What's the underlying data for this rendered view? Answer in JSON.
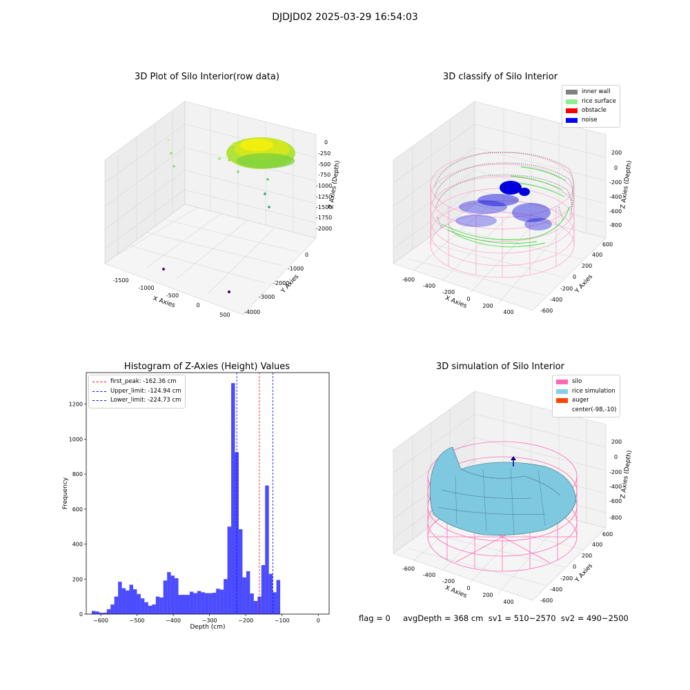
{
  "figure": {
    "suptitle": "DJDJD02 2025-03-29 16:54:03",
    "status_line": "flag = 0     avgDepth = 368 cm  sv1 = 510~2570  sv2 = 490~2500"
  },
  "panels": {
    "raw": {
      "title": "3D Plot of Silo Interior(row data)",
      "xlabel": "X Axies",
      "ylabel": "Y Axies",
      "zlabel": "Z Axies (Depth)",
      "xticks": [
        "-1500",
        "-1000",
        "-500",
        "0",
        "500"
      ],
      "yticks": [
        "-4000",
        "-3000",
        "-2000",
        "-1000",
        "0"
      ],
      "zticks": [
        "0",
        "-250",
        "-500",
        "-750",
        "-1000",
        "-1250",
        "-1500",
        "-1750",
        "-2000"
      ]
    },
    "classify": {
      "title": "3D classify of Silo Interior",
      "xlabel": "X Axies",
      "ylabel": "Y Axies",
      "zlabel": "Z Axies (Depth)",
      "xticks": [
        "-600",
        "-400",
        "-200",
        "0",
        "200",
        "400"
      ],
      "yticks": [
        "-600",
        "-400",
        "-200",
        "0",
        "200",
        "400",
        "600"
      ],
      "zticks": [
        "200",
        "0",
        "-200",
        "-400",
        "-600",
        "-800"
      ],
      "legend": [
        {
          "label": "inner wall",
          "color": "#808080"
        },
        {
          "label": "rice surface",
          "color": "#90ee90"
        },
        {
          "label": "obstacle",
          "color": "#ff0000"
        },
        {
          "label": "noise",
          "color": "#0000ff"
        }
      ]
    },
    "simulation": {
      "title": "3D simulation of Silo Interior",
      "xlabel": "X Axies",
      "ylabel": "Y Axies",
      "zlabel": "Z Axies (Depth)",
      "xticks": [
        "-600",
        "-400",
        "-200",
        "0",
        "200",
        "400"
      ],
      "yticks": [
        "-600",
        "-400",
        "-200",
        "0",
        "200",
        "400",
        "600"
      ],
      "zticks": [
        "200",
        "0",
        "-200",
        "-400",
        "-600",
        "-800"
      ],
      "legend": [
        {
          "label": "silo",
          "color": "#ff69b4"
        },
        {
          "label": "rice simulation",
          "color": "#87ceeb"
        },
        {
          "label": "auger",
          "color": "#ff4500"
        },
        {
          "label": "center(-98,-10)",
          "color": "#ffffff"
        }
      ]
    }
  },
  "chart_data": {
    "type": "bar",
    "title": "Histogram of Z-Axies (Height) Values",
    "xlabel": "Depth (cm)",
    "ylabel": "Frequency",
    "xlim": [
      -640,
      30
    ],
    "ylim": [
      0,
      1380
    ],
    "xticks": [
      -600,
      -500,
      -400,
      -300,
      -200,
      -100,
      0
    ],
    "yticks": [
      0,
      200,
      400,
      600,
      800,
      1000,
      1200
    ],
    "bar_color": "#0000ff",
    "bin_start": -625,
    "bin_width": 10.4,
    "values": [
      18,
      15,
      8,
      8,
      28,
      55,
      100,
      185,
      148,
      135,
      168,
      142,
      115,
      90,
      68,
      48,
      55,
      100,
      95,
      192,
      240,
      220,
      205,
      110,
      110,
      110,
      128,
      120,
      132,
      125,
      120,
      120,
      122,
      145,
      140,
      200,
      500,
      1320,
      925,
      485,
      210,
      245,
      118,
      75,
      100,
      280,
      735,
      230,
      125,
      195
    ],
    "lines": [
      {
        "name": "first_peak",
        "label": "first_peak: -162.36 cm",
        "x": -162.36,
        "color": "#ff0000"
      },
      {
        "name": "Upper_limit",
        "label": "Upper_limit: -124.94 cm",
        "x": -124.94,
        "color": "#0000ff"
      },
      {
        "name": "Lower_limit",
        "label": "Lower_limit: -224.73 cm",
        "x": -224.73,
        "color": "#0000ff"
      }
    ],
    "legend_position": "upper left"
  }
}
